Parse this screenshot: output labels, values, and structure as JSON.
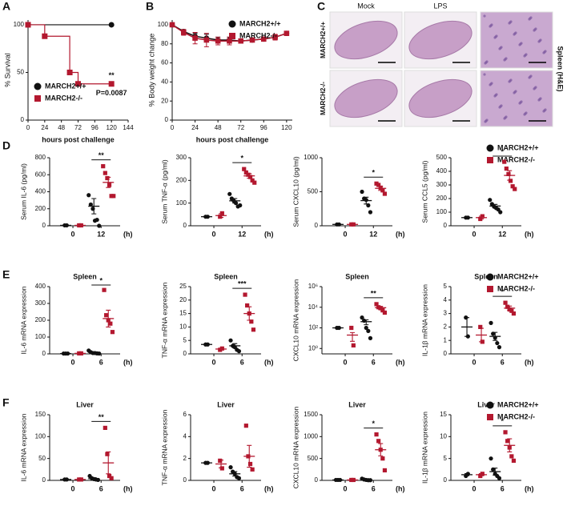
{
  "chart_data": [
    {
      "type": "survival",
      "panel": "A",
      "xlabel": "hours post challenge",
      "ylabel": "% Survival",
      "xlim": [
        0,
        144
      ],
      "xticks": [
        0,
        24,
        48,
        72,
        96,
        120,
        144
      ],
      "ylim": [
        0,
        105
      ],
      "yticks": [
        0,
        50,
        100
      ],
      "legend": "lower left",
      "annotations": [
        "**",
        "P=0.0087"
      ],
      "series": [
        {
          "name": "MARCH2+/+",
          "color": "#111111",
          "marker": "circle",
          "x": [
            0,
            120
          ],
          "values": [
            100,
            100
          ]
        },
        {
          "name": "MARCH2-/-",
          "color": "#b3182f",
          "marker": "square",
          "x": [
            0,
            24,
            60,
            72,
            120
          ],
          "values": [
            100,
            88,
            50,
            38,
            38
          ]
        }
      ]
    },
    {
      "type": "line",
      "panel": "B",
      "xlabel": "hours post challenge",
      "ylabel": "% Body weight change",
      "xlim": [
        0,
        126
      ],
      "xticks": [
        0,
        24,
        48,
        72,
        96,
        120
      ],
      "ylim": [
        0,
        105
      ],
      "yticks": [
        0,
        20,
        40,
        60,
        80,
        100
      ],
      "legend": "upper right",
      "x": [
        0,
        12,
        24,
        36,
        48,
        60,
        72,
        84,
        96,
        108,
        120
      ],
      "series": [
        {
          "name": "MARCH2+/+",
          "color": "#111111",
          "marker": "circle",
          "values": [
            100,
            93,
            88,
            86,
            84,
            84,
            83,
            84,
            85,
            87,
            91
          ],
          "errors": [
            0,
            2,
            3,
            4,
            3,
            3,
            2,
            2,
            2,
            2,
            2
          ]
        },
        {
          "name": "MARCH2-/-",
          "color": "#b3182f",
          "marker": "square",
          "values": [
            100,
            92,
            86,
            84,
            83,
            83,
            83,
            84,
            85,
            87,
            91
          ],
          "errors": [
            0,
            3,
            6,
            7,
            4,
            4,
            2,
            2,
            2,
            3,
            2
          ]
        }
      ]
    },
    {
      "type": "dot",
      "panel": "D",
      "x_unit": "(h)",
      "legend": "upper right",
      "series": [
        {
          "name": "MARCH2+/+",
          "color": "#111111",
          "marker": "circle"
        },
        {
          "name": "MARCH2-/-",
          "color": "#b3182f",
          "marker": "square"
        }
      ],
      "plots": [
        {
          "ylabel": "Serum IL-6 (pg/ml)",
          "ylim": [
            0,
            800
          ],
          "yticks": [
            0,
            200,
            400,
            600,
            800
          ],
          "categories": [
            "0",
            "12"
          ],
          "significance": "**",
          "values": [
            [
              [
                5,
                5
              ],
              [
                360,
                250,
                200,
                60,
                70,
                0
              ]
            ],
            [
              [
                5,
                5
              ],
              [
                700,
                620,
                560,
                480,
                350,
                350
              ]
            ]
          ],
          "means": [
            [
              5,
              230
            ],
            [
              5,
              510
            ]
          ],
          "errors": [
            [
              0,
              90
            ],
            [
              0,
              60
            ]
          ]
        },
        {
          "ylabel": "Serum TNF-α (pg/ml)",
          "ylim": [
            0,
            300
          ],
          "yticks": [
            0,
            100,
            200,
            300
          ],
          "categories": [
            "0",
            "12"
          ],
          "significance": "*",
          "values": [
            [
              [
                40,
                40
              ],
              [
                140,
                120,
                110,
                100,
                85,
                90
              ]
            ],
            [
              [
                40,
                55
              ],
              [
                250,
                235,
                225,
                215,
                200,
                190
              ]
            ]
          ],
          "means": [
            [
              40,
              110
            ],
            [
              45,
              220
            ]
          ],
          "errors": [
            [
              0,
              10
            ],
            [
              8,
              10
            ]
          ]
        },
        {
          "ylabel": "Serum CXCL10 (pg/ml)",
          "ylim": [
            0,
            1000
          ],
          "yticks": [
            0,
            500,
            1000
          ],
          "categories": [
            "0",
            "12"
          ],
          "significance": "*",
          "values": [
            [
              [
                20,
                20
              ],
              [
                500,
                400,
                380,
                300,
                200
              ]
            ],
            [
              [
                20,
                20
              ],
              [
                620,
                600,
                560,
                520,
                470
              ]
            ]
          ],
          "means": [
            [
              20,
              370
            ],
            [
              20,
              550
            ]
          ],
          "errors": [
            [
              0,
              50
            ],
            [
              0,
              30
            ]
          ]
        },
        {
          "ylabel": "Serum CCL5 (pg/ml)",
          "ylim": [
            0,
            500
          ],
          "yticks": [
            0,
            100,
            200,
            300,
            400,
            500
          ],
          "categories": [
            "0",
            "12"
          ],
          "significance": "*",
          "values": [
            [
              [
                60,
                60
              ],
              [
                190,
                160,
                140,
                130,
                120,
                100
              ]
            ],
            [
              [
                50,
                70
              ],
              [
                470,
                420,
                380,
                330,
                290,
                270
              ]
            ]
          ],
          "means": [
            [
              60,
              145
            ],
            [
              60,
              370
            ]
          ],
          "errors": [
            [
              0,
              12
            ],
            [
              10,
              35
            ]
          ]
        }
      ]
    },
    {
      "type": "dot",
      "panel": "E",
      "x_unit": "(h)",
      "legend": "upper right",
      "series": [
        {
          "name": "MARCH2+/+",
          "color": "#111111",
          "marker": "circle"
        },
        {
          "name": "MARCH2-/-",
          "color": "#b3182f",
          "marker": "square"
        }
      ],
      "plots": [
        {
          "title": "Spleen",
          "ylabel": "IL-6 mRNA expression",
          "ylim": [
            0,
            400
          ],
          "yticks": [
            0,
            100,
            200,
            300,
            400
          ],
          "categories": [
            "0",
            "6"
          ],
          "significance": "*",
          "values": [
            [
              [
                2,
                2,
                2
              ],
              [
                20,
                10,
                5,
                5,
                3,
                2
              ]
            ],
            [
              [
                3,
                3
              ],
              [
                380,
                230,
                200,
                180,
                130
              ]
            ]
          ],
          "means": [
            [
              2,
              8
            ],
            [
              3,
              210
            ]
          ],
          "errors": [
            [
              0,
              3
            ],
            [
              0,
              50
            ]
          ]
        },
        {
          "title": "Spleen",
          "ylabel": "TNF-α mRNA expression",
          "ylim": [
            0,
            25
          ],
          "yticks": [
            0,
            5,
            10,
            15,
            20,
            25
          ],
          "categories": [
            "0",
            "6"
          ],
          "significance": "***",
          "values": [
            [
              [
                3.5,
                3.5
              ],
              [
                5,
                3,
                2.5,
                1.5,
                1
              ]
            ],
            [
              [
                1.5,
                2
              ],
              [
                22,
                18,
                15,
                12,
                9
              ]
            ]
          ],
          "means": [
            [
              3.5,
              3
            ],
            [
              1.8,
              15
            ]
          ],
          "errors": [
            [
              0,
              0.8
            ],
            [
              0.3,
              2.5
            ]
          ]
        },
        {
          "title": "Spleen",
          "ylabel": "CXCL10 mRNA expression",
          "log_scale": true,
          "ylim": [
            0.3,
            1000000
          ],
          "yticks": [
            {
              "value": 1,
              "label": "10⁰"
            },
            {
              "value": 100,
              "label": "10²"
            },
            {
              "value": 10000,
              "label": "10⁴"
            },
            {
              "value": 1000000,
              "label": "10⁶"
            }
          ],
          "categories": [
            "0",
            "6"
          ],
          "significance": "**",
          "values": [
            [
              [
                100,
                100
              ],
              [
                1000,
                500,
                100,
                50,
                10
              ]
            ],
            [
              [
                100,
                2
              ],
              [
                20000,
                10000,
                8000,
                5000,
                3000
              ]
            ]
          ],
          "means": [
            [
              100,
              400
            ],
            [
              20,
              9000
            ]
          ],
          "errors": [
            [
              0,
              200
            ],
            [
              15,
              3000
            ]
          ]
        },
        {
          "title": "Spleen",
          "ylabel": "IL-1β mRNA expression",
          "ylim": [
            0,
            5
          ],
          "yticks": [
            0,
            1,
            2,
            3,
            4,
            5
          ],
          "categories": [
            "0",
            "6"
          ],
          "significance": "*",
          "values": [
            [
              [
                2.7,
                1.3
              ],
              [
                2.3,
                1.5,
                1.2,
                0.8,
                0.5
              ]
            ],
            [
              [
                2,
                0.9
              ],
              [
                3.8,
                3.5,
                3.3,
                3.2,
                3.0
              ]
            ]
          ],
          "means": [
            [
              2,
              1.3
            ],
            [
              1.4,
              3.4
            ]
          ],
          "errors": [
            [
              0.7,
              0.3
            ],
            [
              0.5,
              0.15
            ]
          ]
        }
      ]
    },
    {
      "type": "dot",
      "panel": "F",
      "x_unit": "(h)",
      "legend": "upper right",
      "series": [
        {
          "name": "MARCH2+/+",
          "color": "#111111",
          "marker": "circle"
        },
        {
          "name": "MARCH2-/-",
          "color": "#b3182f",
          "marker": "square"
        }
      ],
      "plots": [
        {
          "title": "Liver",
          "ylabel": "IL-6 mRNA expression",
          "ylim": [
            0,
            150
          ],
          "yticks": [
            0,
            50,
            100,
            150
          ],
          "categories": [
            "0",
            "6"
          ],
          "significance": "**",
          "values": [
            [
              [
                2,
                2
              ],
              [
                10,
                5,
                3,
                2,
                1
              ]
            ],
            [
              [
                2,
                2
              ],
              [
                120,
                60,
                10,
                5
              ]
            ]
          ],
          "means": [
            [
              2,
              4
            ],
            [
              2,
              40
            ]
          ],
          "errors": [
            [
              0,
              2
            ],
            [
              0,
              25
            ]
          ]
        },
        {
          "title": "Liver",
          "ylabel": "TNF-α mRNA expression",
          "ylim": [
            0,
            6
          ],
          "yticks": [
            0,
            2,
            4,
            6
          ],
          "categories": [
            "0",
            "6"
          ],
          "values": [
            [
              [
                1.6,
                1.6
              ],
              [
                1.2,
                0.8,
                0.6,
                0.3,
                0.2
              ]
            ],
            [
              [
                1.8,
                1.1
              ],
              [
                5,
                2.2,
                1.5,
                1
              ]
            ]
          ],
          "means": [
            [
              1.6,
              0.6
            ],
            [
              1.5,
              2.2
            ]
          ],
          "errors": [
            [
              0,
              0.2
            ],
            [
              0.35,
              1
            ]
          ]
        },
        {
          "title": "Liver",
          "ylabel": "CXCL10 mRNA expression",
          "ylim": [
            0,
            1500
          ],
          "yticks": [
            0,
            500,
            1000,
            1500
          ],
          "categories": [
            "0",
            "6"
          ],
          "significance": "*",
          "values": [
            [
              [
                10,
                10,
                10
              ],
              [
                40,
                20,
                10,
                5,
                5
              ]
            ],
            [
              [
                10,
                10
              ],
              [
                1050,
                900,
                700,
                500,
                230
              ]
            ]
          ],
          "means": [
            [
              10,
              20
            ],
            [
              10,
              700
            ]
          ],
          "errors": [
            [
              0,
              8
            ],
            [
              0,
              140
            ]
          ]
        },
        {
          "title": "Liver",
          "ylabel": "IL-1β mRNA expression",
          "ylim": [
            0,
            15
          ],
          "yticks": [
            0,
            5,
            10,
            15
          ],
          "categories": [
            "0",
            "6"
          ],
          "significance": "*",
          "values": [
            [
              [
                1,
                1.5
              ],
              [
                5,
                2.5,
                1.5,
                1,
                0.5
              ]
            ],
            [
              [
                1,
                1.5
              ],
              [
                11,
                9,
                7.5,
                5.5,
                4.5
              ]
            ]
          ],
          "means": [
            [
              1.3,
              2
            ],
            [
              1.3,
              8
            ]
          ],
          "errors": [
            [
              0.25,
              0.8
            ],
            [
              0.25,
              1.5
            ]
          ]
        }
      ]
    }
  ],
  "panel_c": {
    "panel": "C",
    "columns": [
      "Mock",
      "LPS"
    ],
    "rows": [
      "MARCH2+/+",
      "MARCH2-/-"
    ],
    "side_label": "Spleen (H&E)"
  }
}
